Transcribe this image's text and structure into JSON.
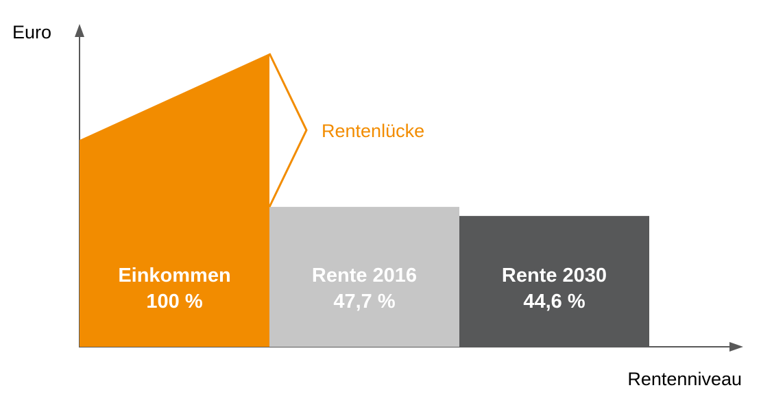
{
  "chart_data": {
    "type": "bar",
    "title": "",
    "xlabel": "Rentenniveau",
    "ylabel": "Euro",
    "grid": false,
    "legend": "none",
    "categories": [
      "Einkommen",
      "Rente 2016",
      "Rente 2030"
    ],
    "values": [
      100,
      47.7,
      44.6
    ],
    "value_labels": [
      "100 %",
      "47,7 %",
      "44,6 %"
    ],
    "colors": [
      "#f28c00",
      "#c6c6c6",
      "#575859"
    ],
    "label_colors": [
      "#ffffff",
      "#ffffff",
      "#ffffff"
    ],
    "income_bar_shape": "rising",
    "annotation": {
      "text": "Rentenlücke",
      "color": "#f28c00",
      "between": [
        "Einkommen",
        "Rente 2016"
      ]
    }
  }
}
